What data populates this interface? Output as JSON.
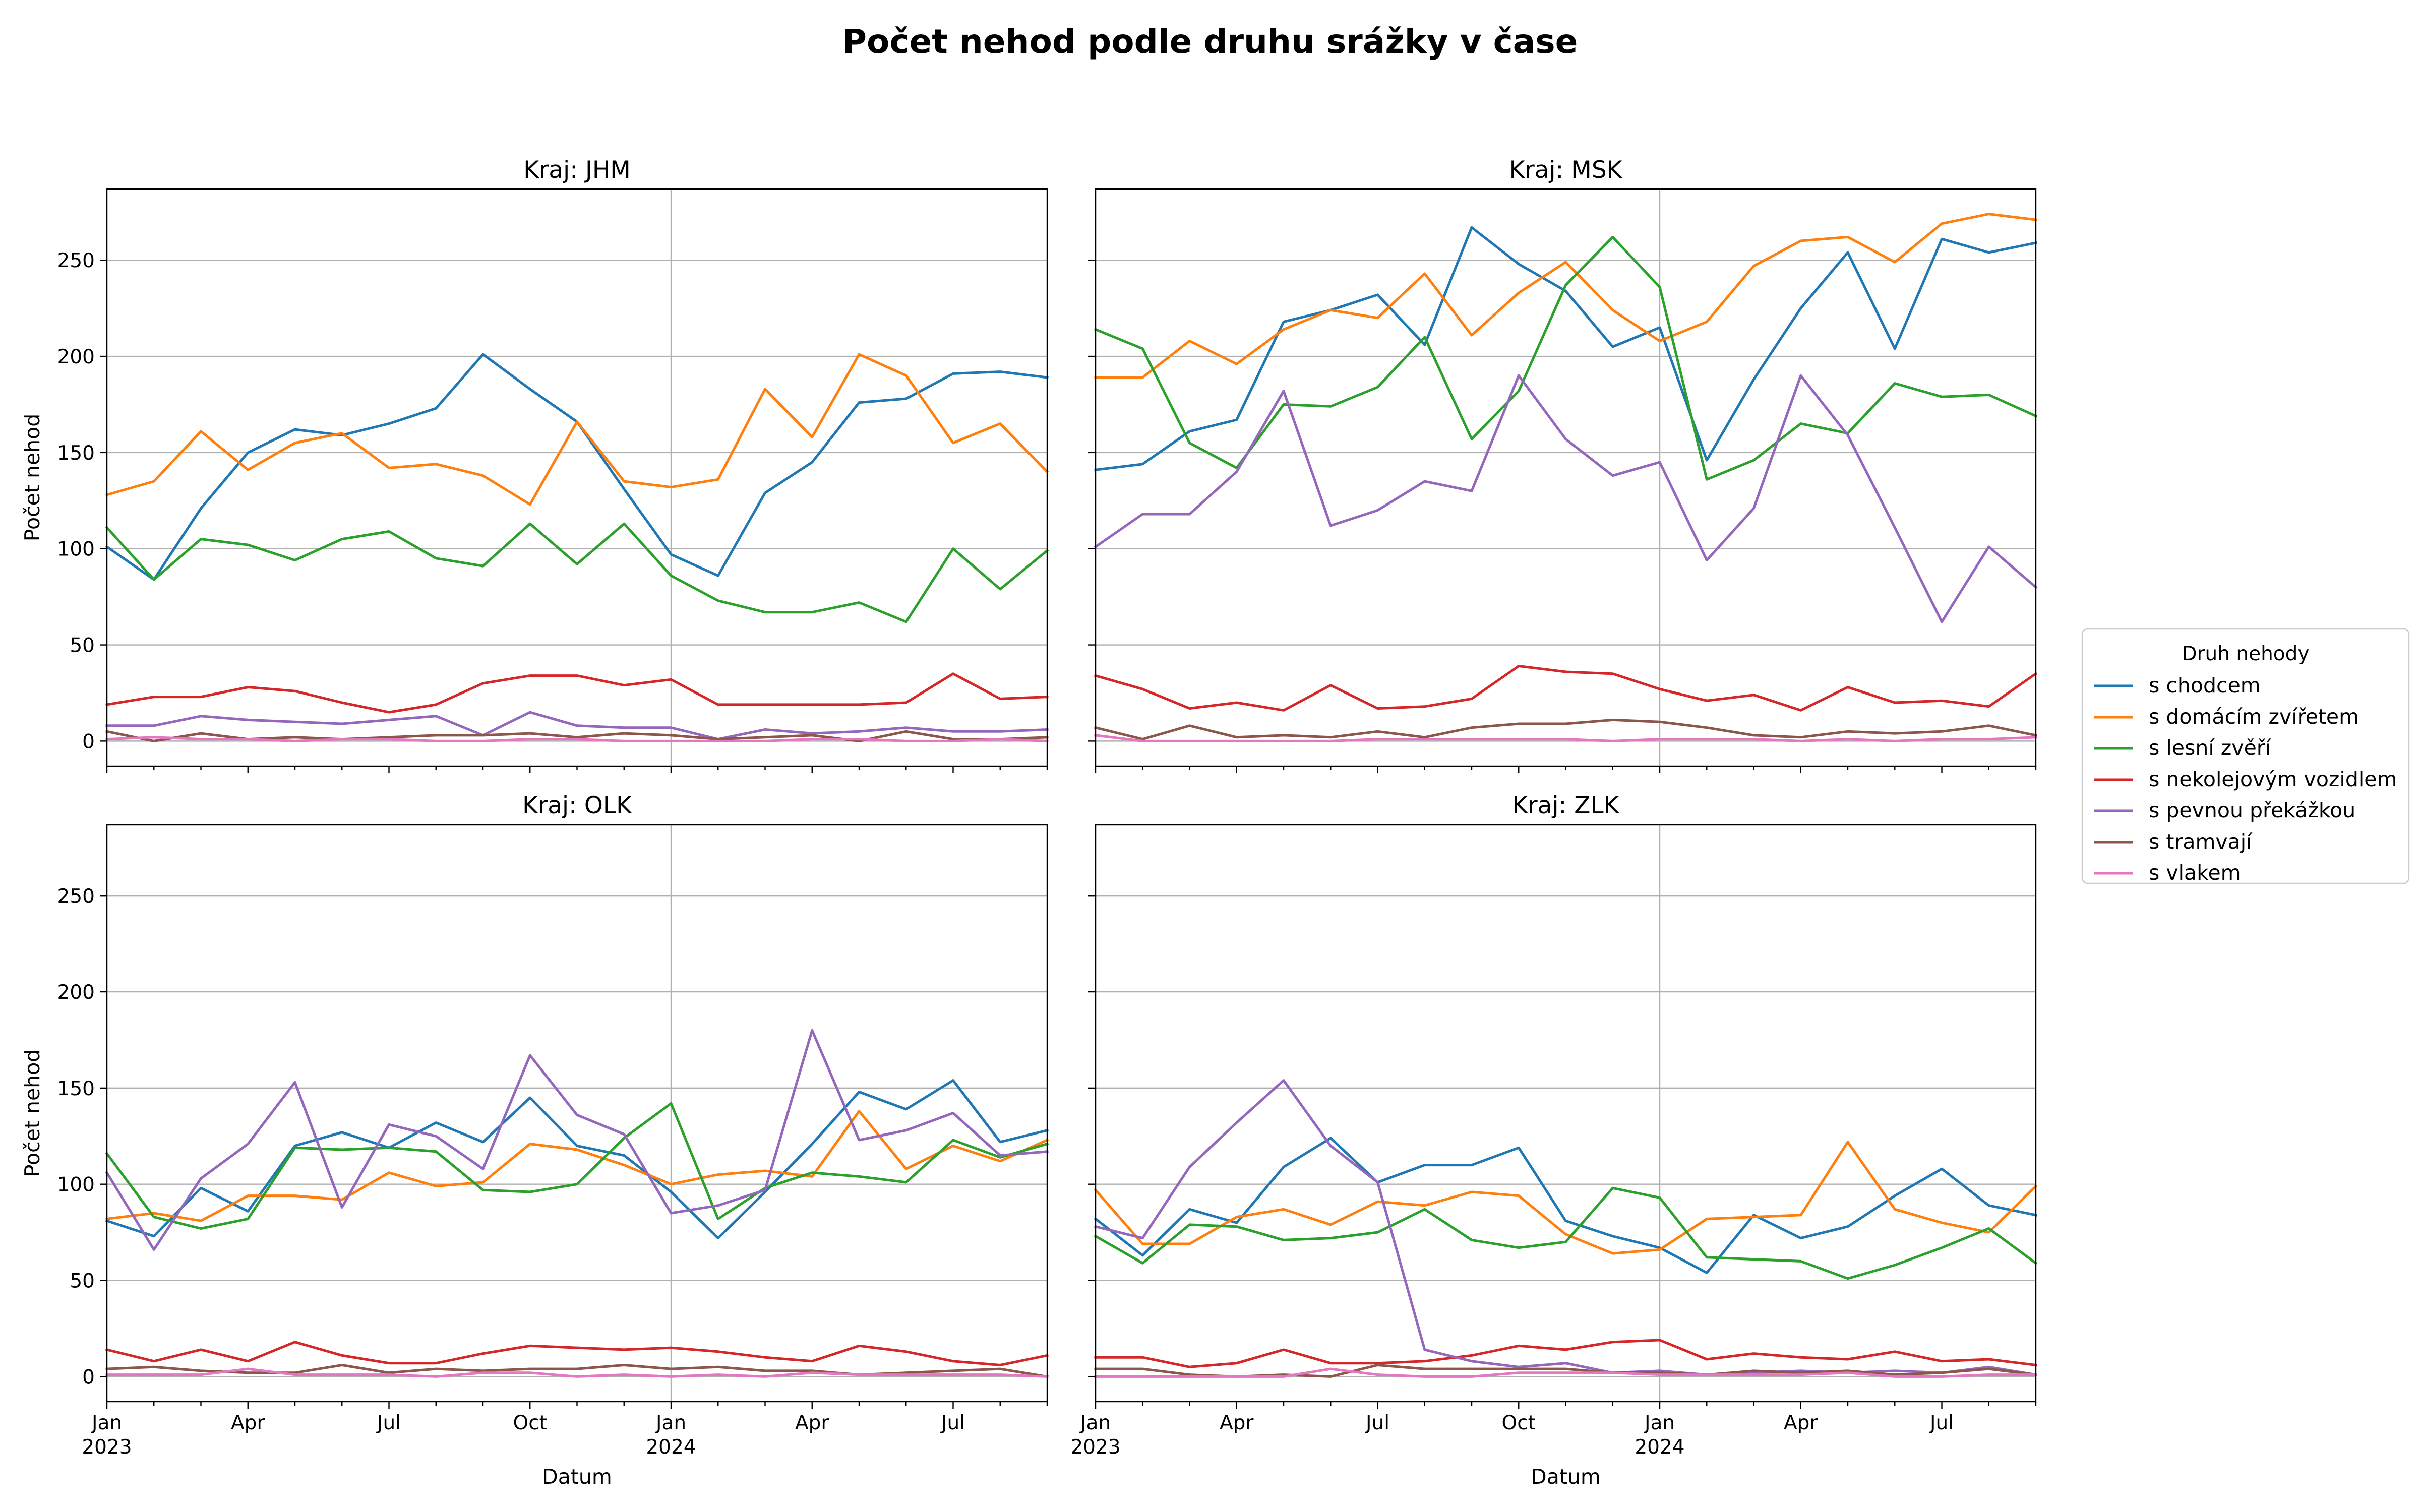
{
  "title": "Počet nehod podle druhu srážky v čase",
  "chart_data": {
    "type": "line",
    "title": "Počet nehod podle druhu srážky v čase",
    "xlabel": "Datum",
    "ylabel": "Počet nehod",
    "ylim": [
      -13,
      287
    ],
    "yticks": [
      0,
      50,
      100,
      150,
      200,
      250
    ],
    "x": [
      "2023-01",
      "2023-02",
      "2023-03",
      "2023-04",
      "2023-05",
      "2023-06",
      "2023-07",
      "2023-08",
      "2023-09",
      "2023-10",
      "2023-11",
      "2023-12",
      "2024-01",
      "2024-02",
      "2024-03",
      "2024-04",
      "2024-05",
      "2024-06",
      "2024-07",
      "2024-08",
      "2024-09"
    ],
    "xticks": [
      {
        "month": "2023-01",
        "label": "Jan",
        "sublabel": "2023"
      },
      {
        "month": "2023-04",
        "label": "Apr",
        "sublabel": ""
      },
      {
        "month": "2023-07",
        "label": "Jul",
        "sublabel": ""
      },
      {
        "month": "2023-10",
        "label": "Oct",
        "sublabel": ""
      },
      {
        "month": "2024-01",
        "label": "Jan",
        "sublabel": "2024"
      },
      {
        "month": "2024-04",
        "label": "Apr",
        "sublabel": ""
      },
      {
        "month": "2024-07",
        "label": "Jul",
        "sublabel": ""
      }
    ],
    "grid": true,
    "legend": {
      "title": "Druh nehody",
      "placement": "right",
      "entries": [
        {
          "name": "s chodcem",
          "color": "#1f77b4"
        },
        {
          "name": "s domácím zvířetem",
          "color": "#ff7f0e"
        },
        {
          "name": "s lesní zvěří",
          "color": "#2ca02c"
        },
        {
          "name": "s nekolejovým vozidlem",
          "color": "#d62728"
        },
        {
          "name": "s pevnou překážkou",
          "color": "#9467bd"
        },
        {
          "name": "s tramvají",
          "color": "#8c564b"
        },
        {
          "name": "s vlakem",
          "color": "#e377c2"
        }
      ]
    },
    "panels": [
      {
        "title": "Kraj: JHM",
        "series": [
          {
            "name": "s chodcem",
            "values": [
              101,
              84,
              121,
              150,
              162,
              159,
              165,
              173,
              201,
              183,
              166,
              131,
              97,
              86,
              129,
              145,
              176,
              178,
              191,
              192,
              189
            ]
          },
          {
            "name": "s domácím zvířetem",
            "values": [
              128,
              135,
              161,
              141,
              155,
              160,
              142,
              144,
              138,
              123,
              166,
              135,
              132,
              136,
              183,
              158,
              201,
              190,
              155,
              165,
              140
            ]
          },
          {
            "name": "s lesní zvěří",
            "values": [
              111,
              84,
              105,
              102,
              94,
              105,
              109,
              95,
              91,
              113,
              92,
              113,
              86,
              73,
              67,
              67,
              72,
              62,
              100,
              79,
              99
            ]
          },
          {
            "name": "s nekolejovým vozidlem",
            "values": [
              19,
              23,
              23,
              28,
              26,
              20,
              15,
              19,
              30,
              34,
              34,
              29,
              32,
              19,
              19,
              19,
              19,
              20,
              35,
              22,
              23
            ]
          },
          {
            "name": "s pevnou překážkou",
            "values": [
              8,
              8,
              13,
              11,
              10,
              9,
              11,
              13,
              3,
              15,
              8,
              7,
              7,
              1,
              6,
              4,
              5,
              7,
              5,
              5,
              6
            ]
          },
          {
            "name": "s tramvají",
            "values": [
              5,
              0,
              4,
              1,
              2,
              1,
              2,
              3,
              3,
              4,
              2,
              4,
              3,
              1,
              2,
              3,
              0,
              5,
              1,
              1,
              2
            ]
          },
          {
            "name": "s vlakem",
            "values": [
              1,
              2,
              1,
              1,
              0,
              1,
              1,
              0,
              0,
              1,
              1,
              0,
              0,
              0,
              0,
              1,
              1,
              0,
              0,
              1,
              0
            ]
          }
        ]
      },
      {
        "title": "Kraj: MSK",
        "series": [
          {
            "name": "s chodcem",
            "values": [
              141,
              144,
              161,
              167,
              218,
              224,
              232,
              206,
              267,
              248,
              234,
              205,
              215,
              146,
              188,
              225,
              254,
              204,
              261,
              254,
              259
            ]
          },
          {
            "name": "s domácím zvířetem",
            "values": [
              189,
              189,
              208,
              196,
              214,
              224,
              220,
              243,
              211,
              233,
              249,
              224,
              208,
              218,
              247,
              260,
              262,
              249,
              269,
              274,
              271
            ]
          },
          {
            "name": "s lesní zvěří",
            "values": [
              214,
              204,
              155,
              142,
              175,
              174,
              184,
              210,
              157,
              182,
              237,
              262,
              236,
              136,
              146,
              165,
              160,
              186,
              179,
              180,
              169
            ]
          },
          {
            "name": "s nekolejovým vozidlem",
            "values": [
              34,
              27,
              17,
              20,
              16,
              29,
              17,
              18,
              22,
              39,
              36,
              35,
              27,
              21,
              24,
              16,
              28,
              20,
              21,
              18,
              35
            ]
          },
          {
            "name": "s pevnou překážkou",
            "values": [
              101,
              118,
              118,
              140,
              182,
              112,
              120,
              135,
              130,
              190,
              157,
              138,
              145,
              94,
              121,
              190,
              159,
              111,
              62,
              101,
              80
            ]
          },
          {
            "name": "s tramvají",
            "values": [
              7,
              1,
              8,
              2,
              3,
              2,
              5,
              2,
              7,
              9,
              9,
              11,
              10,
              7,
              3,
              2,
              5,
              4,
              5,
              8,
              3
            ]
          },
          {
            "name": "s vlakem",
            "values": [
              3,
              0,
              0,
              0,
              0,
              0,
              1,
              1,
              1,
              1,
              1,
              0,
              1,
              1,
              1,
              0,
              1,
              0,
              1,
              1,
              2
            ]
          }
        ]
      },
      {
        "title": "Kraj: OLK",
        "series": [
          {
            "name": "s chodcem",
            "values": [
              81,
              73,
              98,
              86,
              120,
              127,
              119,
              132,
              122,
              145,
              120,
              115,
              96,
              72,
              96,
              121,
              148,
              139,
              154,
              122,
              128
            ]
          },
          {
            "name": "s domácím zvířetem",
            "values": [
              82,
              85,
              81,
              94,
              94,
              92,
              106,
              99,
              101,
              121,
              118,
              110,
              100,
              105,
              107,
              104,
              138,
              108,
              120,
              112,
              123
            ]
          },
          {
            "name": "s lesní zvěří",
            "values": [
              116,
              83,
              77,
              82,
              119,
              118,
              119,
              117,
              97,
              96,
              100,
              124,
              142,
              82,
              98,
              106,
              104,
              101,
              123,
              114,
              121
            ]
          },
          {
            "name": "s nekolejovým vozidlem",
            "values": [
              14,
              8,
              14,
              8,
              18,
              11,
              7,
              7,
              12,
              16,
              15,
              14,
              15,
              13,
              10,
              8,
              16,
              13,
              8,
              6,
              11
            ]
          },
          {
            "name": "s pevnou překážkou",
            "values": [
              106,
              66,
              103,
              121,
              153,
              88,
              131,
              125,
              108,
              167,
              136,
              126,
              85,
              89,
              97,
              180,
              123,
              128,
              137,
              115,
              117
            ]
          },
          {
            "name": "s tramvají",
            "values": [
              4,
              5,
              3,
              2,
              2,
              6,
              2,
              4,
              3,
              4,
              4,
              6,
              4,
              5,
              3,
              3,
              1,
              2,
              3,
              4,
              0
            ]
          },
          {
            "name": "s vlakem",
            "values": [
              1,
              1,
              1,
              4,
              1,
              1,
              1,
              0,
              2,
              2,
              0,
              1,
              0,
              1,
              0,
              2,
              1,
              1,
              1,
              1,
              0
            ]
          }
        ]
      },
      {
        "title": "Kraj: ZLK",
        "series": [
          {
            "name": "s chodcem",
            "values": [
              82,
              63,
              87,
              80,
              109,
              124,
              101,
              110,
              110,
              119,
              81,
              73,
              67,
              54,
              84,
              72,
              78,
              94,
              108,
              89,
              84
            ]
          },
          {
            "name": "s domácím zvířetem",
            "values": [
              97,
              69,
              69,
              83,
              87,
              79,
              91,
              89,
              96,
              94,
              74,
              64,
              66,
              82,
              83,
              84,
              122,
              87,
              80,
              75,
              99
            ]
          },
          {
            "name": "s lesní zvěří",
            "values": [
              73,
              59,
              79,
              78,
              71,
              72,
              75,
              87,
              71,
              67,
              70,
              98,
              93,
              62,
              61,
              60,
              51,
              58,
              67,
              77,
              59
            ]
          },
          {
            "name": "s nekolejovým vozidlem",
            "values": [
              10,
              10,
              5,
              7,
              14,
              7,
              7,
              8,
              11,
              16,
              14,
              18,
              19,
              9,
              12,
              10,
              9,
              13,
              8,
              9,
              6
            ]
          },
          {
            "name": "s pevnou překážkou",
            "values": [
              78,
              72,
              109,
              132,
              154,
              120,
              101,
              14,
              8,
              5,
              7,
              2,
              3,
              1,
              2,
              3,
              2,
              3,
              2,
              5,
              1
            ]
          },
          {
            "name": "s tramvají",
            "values": [
              4,
              4,
              1,
              0,
              1,
              0,
              6,
              4,
              4,
              4,
              4,
              2,
              2,
              1,
              3,
              2,
              3,
              1,
              2,
              4,
              1
            ]
          },
          {
            "name": "s vlakem",
            "values": [
              0,
              0,
              0,
              0,
              0,
              4,
              1,
              0,
              0,
              2,
              2,
              2,
              1,
              1,
              1,
              1,
              2,
              0,
              0,
              1,
              1
            ]
          }
        ]
      }
    ]
  }
}
